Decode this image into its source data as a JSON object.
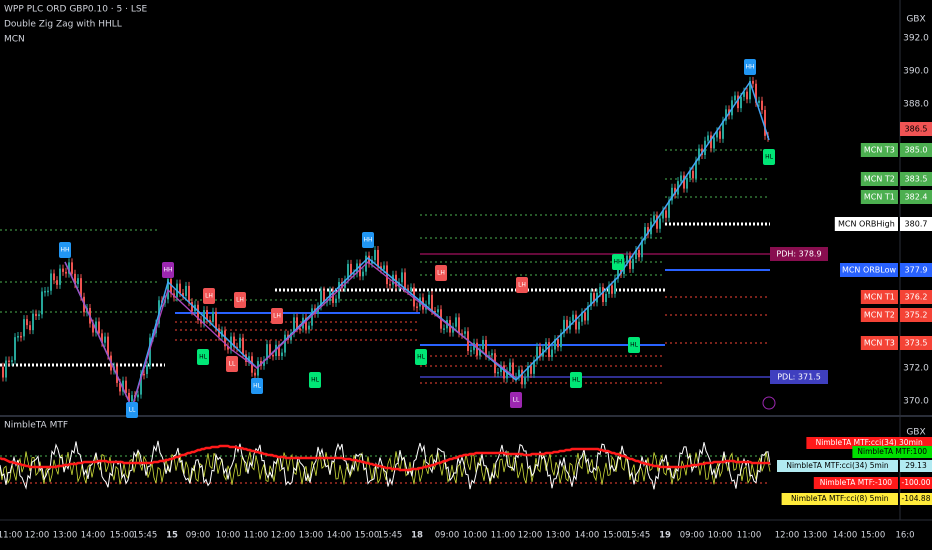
{
  "header": {
    "symbol": "WPP PLC ORD GBP0.10 · 5 · LSE",
    "indicator": "Double Zig Zag with HHLL",
    "overlay": "MCN"
  },
  "price_axis": {
    "unit": "GBX",
    "ticks": [
      "392.0",
      "390.0",
      "388.0",
      "372.0",
      "370.0"
    ]
  },
  "price_badges": [
    {
      "value": "386.5"
    },
    {
      "label": "MCN T3",
      "value": "385.0"
    },
    {
      "label": "MCN T2",
      "value": "383.5"
    },
    {
      "label": "MCN T1",
      "value": "382.4"
    },
    {
      "label": "MCN ORBHigh",
      "value": "380.7"
    },
    {
      "value": "PDH: 378.9"
    },
    {
      "label": "MCN ORBLow",
      "value": "377.9"
    },
    {
      "label": "MCN T1",
      "value": "376.2"
    },
    {
      "label": "MCN T2",
      "value": "375.2"
    },
    {
      "label": "MCN T3",
      "value": "373.5"
    },
    {
      "value": "PDL: 371.5"
    }
  ],
  "pivots": [
    "HH",
    "LL",
    "HH",
    "LH",
    "HL",
    "LH",
    "LL",
    "LH",
    "HL",
    "HL",
    "HH",
    "HL",
    "LH",
    "LH",
    "LL",
    "HL",
    "HH",
    "HL",
    "HH",
    "HL"
  ],
  "oscillator": {
    "title": "NimbleTA MTF",
    "unit": "GBX",
    "badges": [
      {
        "label": "NimbleTA MTF:cci(34) 30min"
      },
      {
        "label": "NimbleTA MTF:100"
      },
      {
        "label": "NimbleTA MTF:cci(34) 5min",
        "value": "29.13"
      },
      {
        "label": "NimbleTA MTF:-100",
        "value": "-100.00"
      },
      {
        "label": "NimbleTA MTF:cci(8) 5min",
        "value": "-104.88"
      }
    ]
  },
  "time_axis": [
    "11:00",
    "12:00",
    "13:00",
    "14:00",
    "15:00",
    "15:45",
    "15",
    "09:00",
    "10:00",
    "11:00",
    "12:00",
    "13:00",
    "14:00",
    "15:00",
    "15:45",
    "18",
    "09:00",
    "10:00",
    "11:00",
    "12:00",
    "13:00",
    "14:00",
    "15:00",
    "15:45",
    "19",
    "09:00",
    "10:00",
    "11:00",
    "12:00",
    "13:00",
    "14:00",
    "15:00",
    "16:0"
  ]
}
